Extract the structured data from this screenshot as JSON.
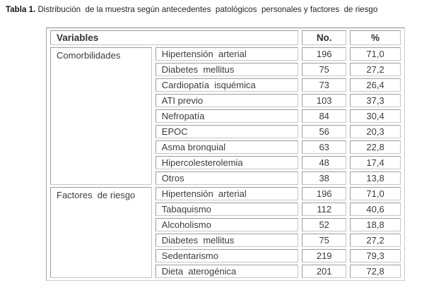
{
  "title": {
    "prefix": "Tabla 1. ",
    "text": "Distribución  de la muestra según antecedentes  patológicos  personales y factores  de riesgo"
  },
  "table": {
    "header": {
      "variables": "Variables",
      "no": "No.",
      "pct": "%"
    },
    "groups": [
      {
        "label": "Comorbilidades",
        "rowspan": 9
      },
      {
        "label": "Factores  de riesgo",
        "rowspan": 6
      }
    ],
    "rows": [
      {
        "label": "Hipertensión  arterial",
        "no": "196",
        "pct": "71,0"
      },
      {
        "label": "Diabetes  mellitus",
        "no": "75",
        "pct": "27,2"
      },
      {
        "label": "Cardiopatía  isquémica",
        "no": "73",
        "pct": "26,4"
      },
      {
        "label": "ATI previo",
        "no": "103",
        "pct": "37,3"
      },
      {
        "label": "Nefropatía",
        "no": "84",
        "pct": "30,4"
      },
      {
        "label": "EPOC",
        "no": "56",
        "pct": "20,3"
      },
      {
        "label": "Asma bronquial",
        "no": "63",
        "pct": "22,8"
      },
      {
        "label": "Hipercolesterolemia",
        "no": "48",
        "pct": "17,4"
      },
      {
        "label": "Otros",
        "no": "38",
        "pct": "13,8"
      },
      {
        "label": "Hipertensión  arterial",
        "no": "196",
        "pct": "71,0"
      },
      {
        "label": "Tabaquismo",
        "no": "112",
        "pct": "40,6"
      },
      {
        "label": "Alcoholismo",
        "no": "52",
        "pct": "18,8"
      },
      {
        "label": "Diabetes  mellitus",
        "no": "75",
        "pct": "27,2"
      },
      {
        "label": "Sedentarismo",
        "no": "219",
        "pct": "79,3"
      },
      {
        "label": "Dieta  aterogénica",
        "no": "201",
        "pct": "72,8"
      }
    ]
  },
  "colors": {
    "background": "#ffffff",
    "cell_border": "#9c9c9c",
    "outer_border": "#8f8f8f",
    "text": "#3c3c3c"
  },
  "chart_data": {
    "type": "table",
    "title": "Tabla 1. Distribución de la muestra según antecedentes patológicos personales y factores de riesgo",
    "columns": [
      "Variables",
      "",
      "No.",
      "%"
    ],
    "rows": [
      [
        "Comorbilidades",
        "Hipertensión arterial",
        196,
        71.0
      ],
      [
        "Comorbilidades",
        "Diabetes mellitus",
        75,
        27.2
      ],
      [
        "Comorbilidades",
        "Cardiopatía isquémica",
        73,
        26.4
      ],
      [
        "Comorbilidades",
        "ATI previo",
        103,
        37.3
      ],
      [
        "Comorbilidades",
        "Nefropatía",
        84,
        30.4
      ],
      [
        "Comorbilidades",
        "EPOC",
        56,
        20.3
      ],
      [
        "Comorbilidades",
        "Asma bronquial",
        63,
        22.8
      ],
      [
        "Comorbilidades",
        "Hipercolesterolemia",
        48,
        17.4
      ],
      [
        "Comorbilidades",
        "Otros",
        38,
        13.8
      ],
      [
        "Factores de riesgo",
        "Hipertensión arterial",
        196,
        71.0
      ],
      [
        "Factores de riesgo",
        "Tabaquismo",
        112,
        40.6
      ],
      [
        "Factores de riesgo",
        "Alcoholismo",
        52,
        18.8
      ],
      [
        "Factores de riesgo",
        "Diabetes mellitus",
        75,
        27.2
      ],
      [
        "Factores de riesgo",
        "Sedentarismo",
        219,
        79.3
      ],
      [
        "Factores de riesgo",
        "Dieta aterogénica",
        201,
        72.8
      ]
    ]
  }
}
